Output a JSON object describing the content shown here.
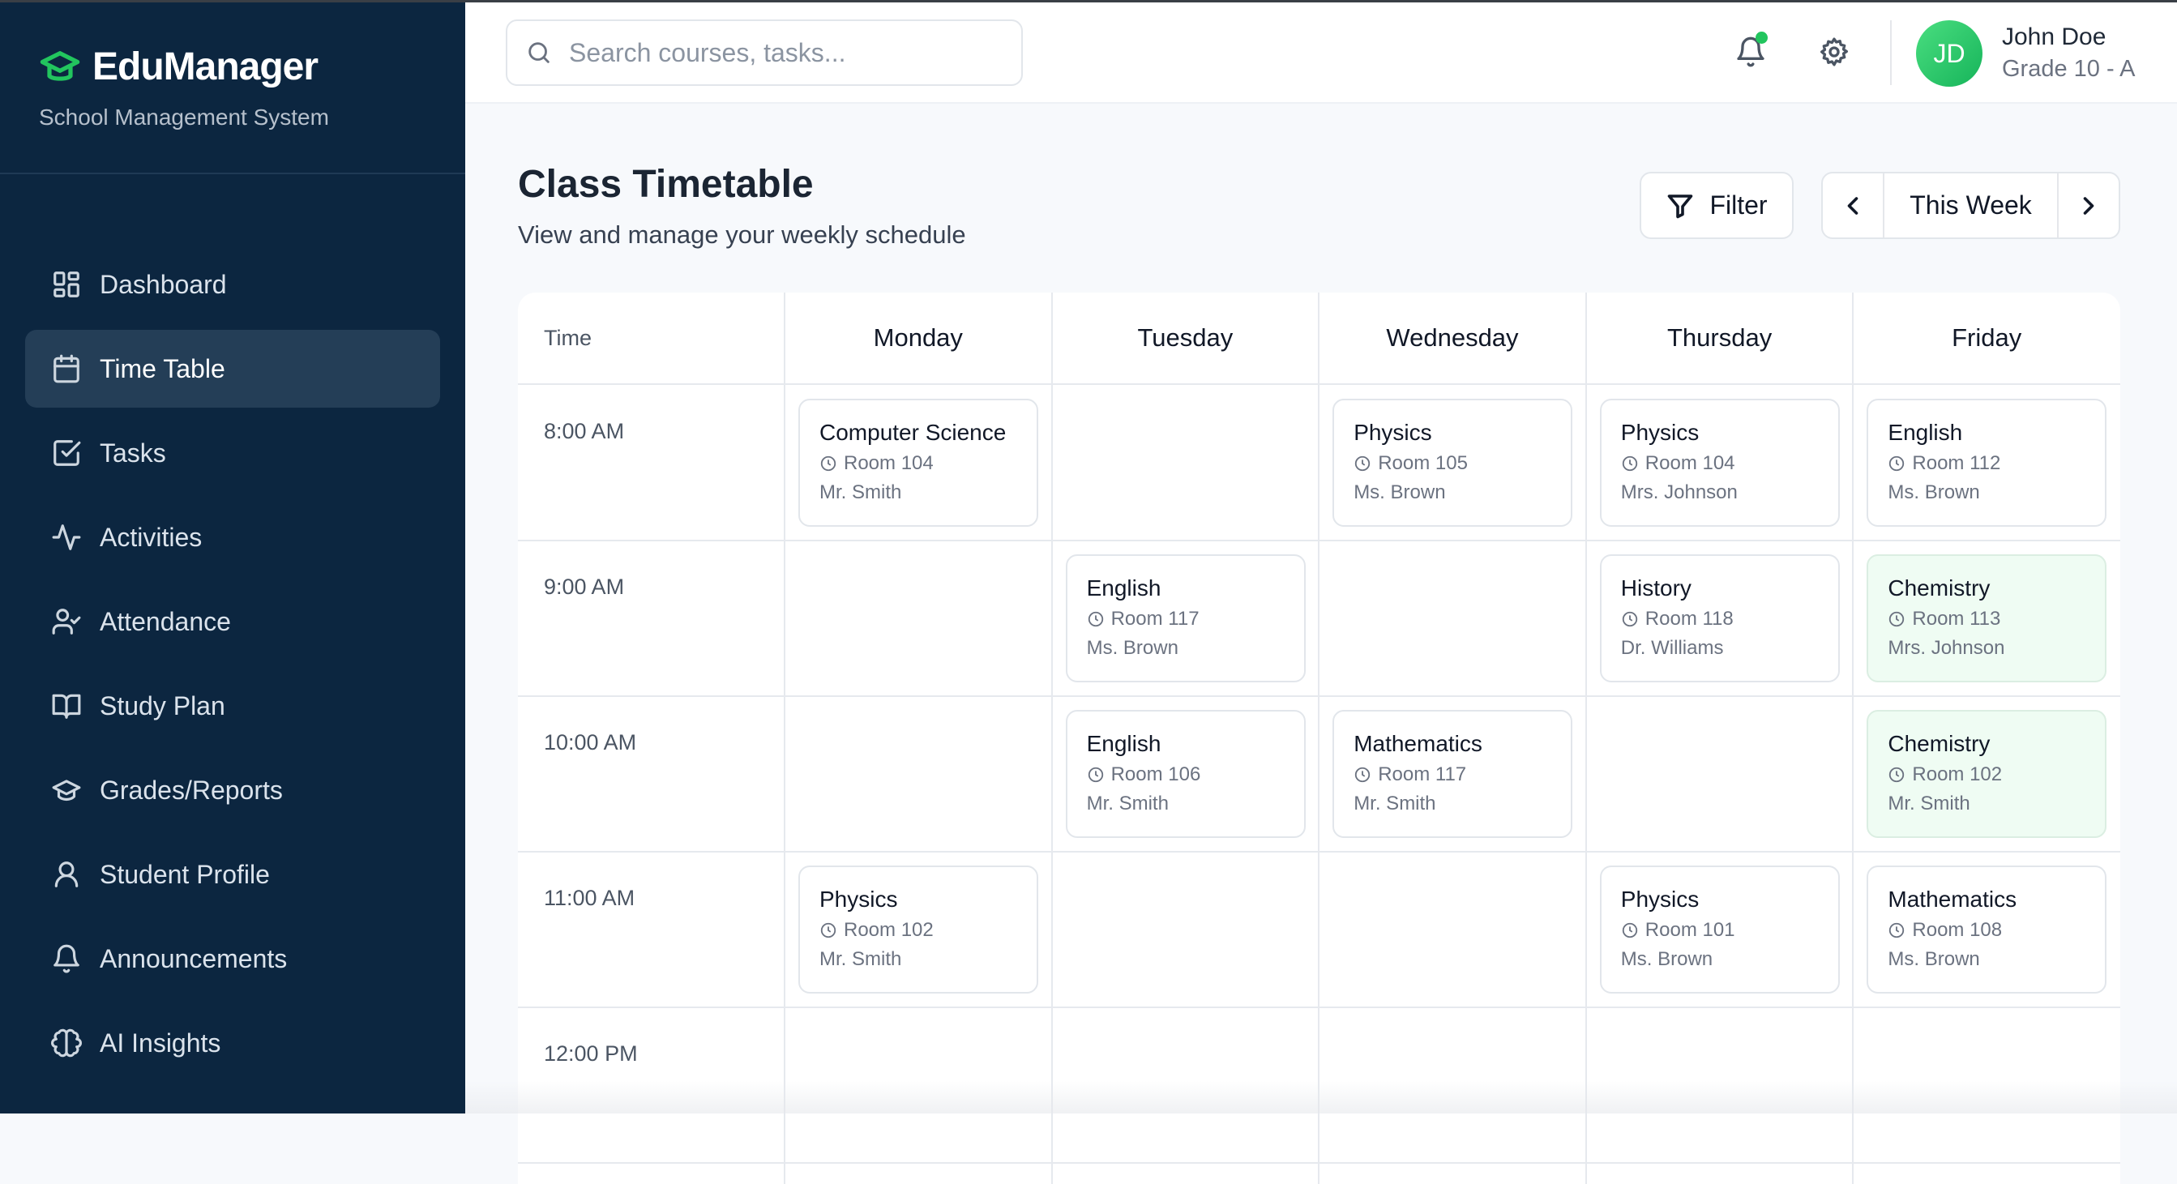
{
  "app": {
    "name": "EduManager",
    "subtitle": "School Management System",
    "brand_color": "#22c55e",
    "sidebar_color": "#0c2640"
  },
  "sidebar": {
    "items": [
      {
        "label": "Dashboard",
        "icon": "dashboard-icon"
      },
      {
        "label": "Time Table",
        "icon": "calendar-icon",
        "active": true
      },
      {
        "label": "Tasks",
        "icon": "checkbox-icon"
      },
      {
        "label": "Activities",
        "icon": "activity-icon"
      },
      {
        "label": "Attendance",
        "icon": "user-check-icon"
      },
      {
        "label": "Study Plan",
        "icon": "book-icon"
      },
      {
        "label": "Grades/Reports",
        "icon": "graduation-cap-icon"
      },
      {
        "label": "Student Profile",
        "icon": "user-icon"
      },
      {
        "label": "Announcements",
        "icon": "bell-icon"
      },
      {
        "label": "AI Insights",
        "icon": "brain-icon"
      }
    ]
  },
  "header": {
    "search_placeholder": "Search courses, tasks...",
    "notification_dot": true,
    "user": {
      "initials": "JD",
      "name": "John Doe",
      "grade": "Grade 10 - A"
    }
  },
  "page": {
    "title": "Class Timetable",
    "subtitle": "View and manage your weekly schedule",
    "filter_label": "Filter",
    "week_label": "This Week"
  },
  "timetable": {
    "time_header": "Time",
    "days": [
      "Monday",
      "Tuesday",
      "Wednesday",
      "Thursday",
      "Friday"
    ],
    "times": [
      "8:00 AM",
      "9:00 AM",
      "10:00 AM",
      "11:00 AM",
      "12:00 PM"
    ],
    "classes": [
      {
        "day": 0,
        "slot": 0,
        "subject": "Computer Science",
        "room": "Room 104",
        "teacher": "Mr. Smith"
      },
      {
        "day": 2,
        "slot": 0,
        "subject": "Physics",
        "room": "Room 105",
        "teacher": "Ms. Brown"
      },
      {
        "day": 3,
        "slot": 0,
        "subject": "Physics",
        "room": "Room 104",
        "teacher": "Mrs. Johnson"
      },
      {
        "day": 4,
        "slot": 0,
        "subject": "English",
        "room": "Room 112",
        "teacher": "Ms. Brown"
      },
      {
        "day": 1,
        "slot": 1,
        "subject": "English",
        "room": "Room 117",
        "teacher": "Ms. Brown"
      },
      {
        "day": 3,
        "slot": 1,
        "subject": "History",
        "room": "Room 118",
        "teacher": "Dr. Williams"
      },
      {
        "day": 4,
        "slot": 1,
        "subject": "Chemistry",
        "room": "Room 113",
        "teacher": "Mrs. Johnson",
        "highlight": true
      },
      {
        "day": 1,
        "slot": 2,
        "subject": "English",
        "room": "Room 106",
        "teacher": "Mr. Smith"
      },
      {
        "day": 2,
        "slot": 2,
        "subject": "Mathematics",
        "room": "Room 117",
        "teacher": "Mr. Smith"
      },
      {
        "day": 4,
        "slot": 2,
        "subject": "Chemistry",
        "room": "Room 102",
        "teacher": "Mr. Smith",
        "highlight": true
      },
      {
        "day": 0,
        "slot": 3,
        "subject": "Physics",
        "room": "Room 102",
        "teacher": "Mr. Smith"
      },
      {
        "day": 3,
        "slot": 3,
        "subject": "Physics",
        "room": "Room 101",
        "teacher": "Ms. Brown"
      },
      {
        "day": 4,
        "slot": 3,
        "subject": "Mathematics",
        "room": "Room 108",
        "teacher": "Ms. Brown"
      }
    ]
  }
}
